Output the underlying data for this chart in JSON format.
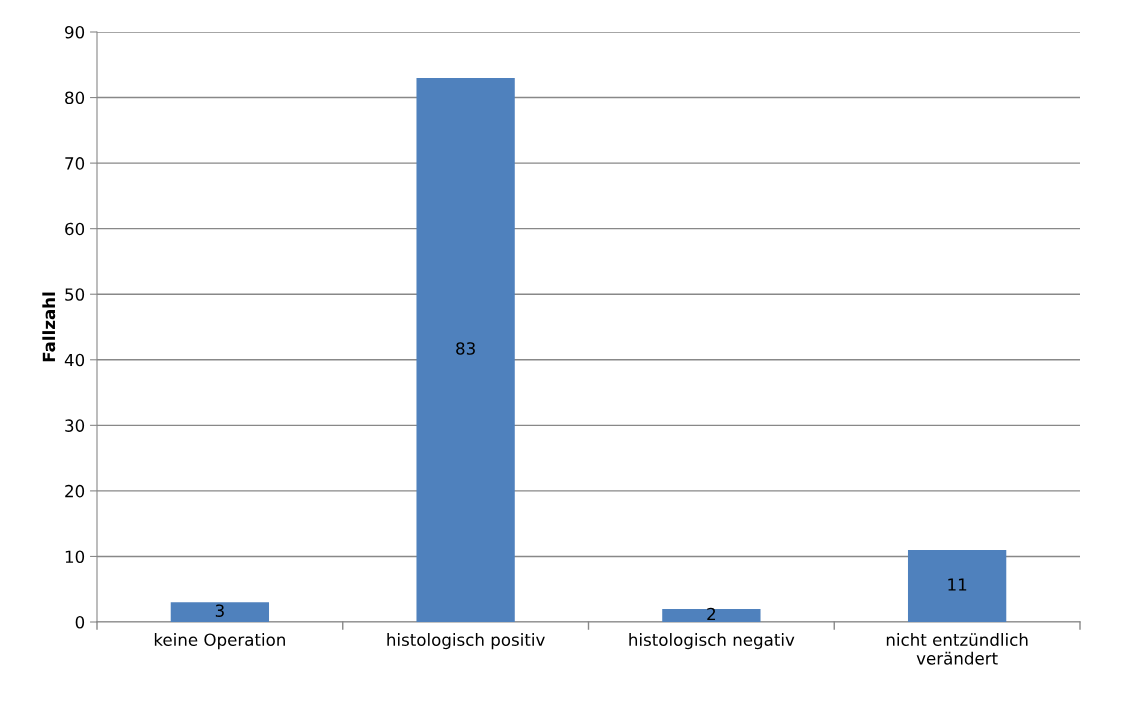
{
  "chart_data": {
    "type": "bar",
    "ylabel": "Fallzahl",
    "categories": [
      "keine Operation",
      "histologisch positiv",
      "histologisch negativ",
      "nicht entzündlich\nverändert"
    ],
    "values": [
      3,
      83,
      2,
      11
    ],
    "color": "#4f81bd",
    "ylim": [
      0,
      90
    ],
    "yticks": [
      0,
      10,
      20,
      30,
      40,
      50,
      60,
      70,
      80,
      90
    ],
    "grid": "y",
    "data_labels": true,
    "legend": false
  }
}
